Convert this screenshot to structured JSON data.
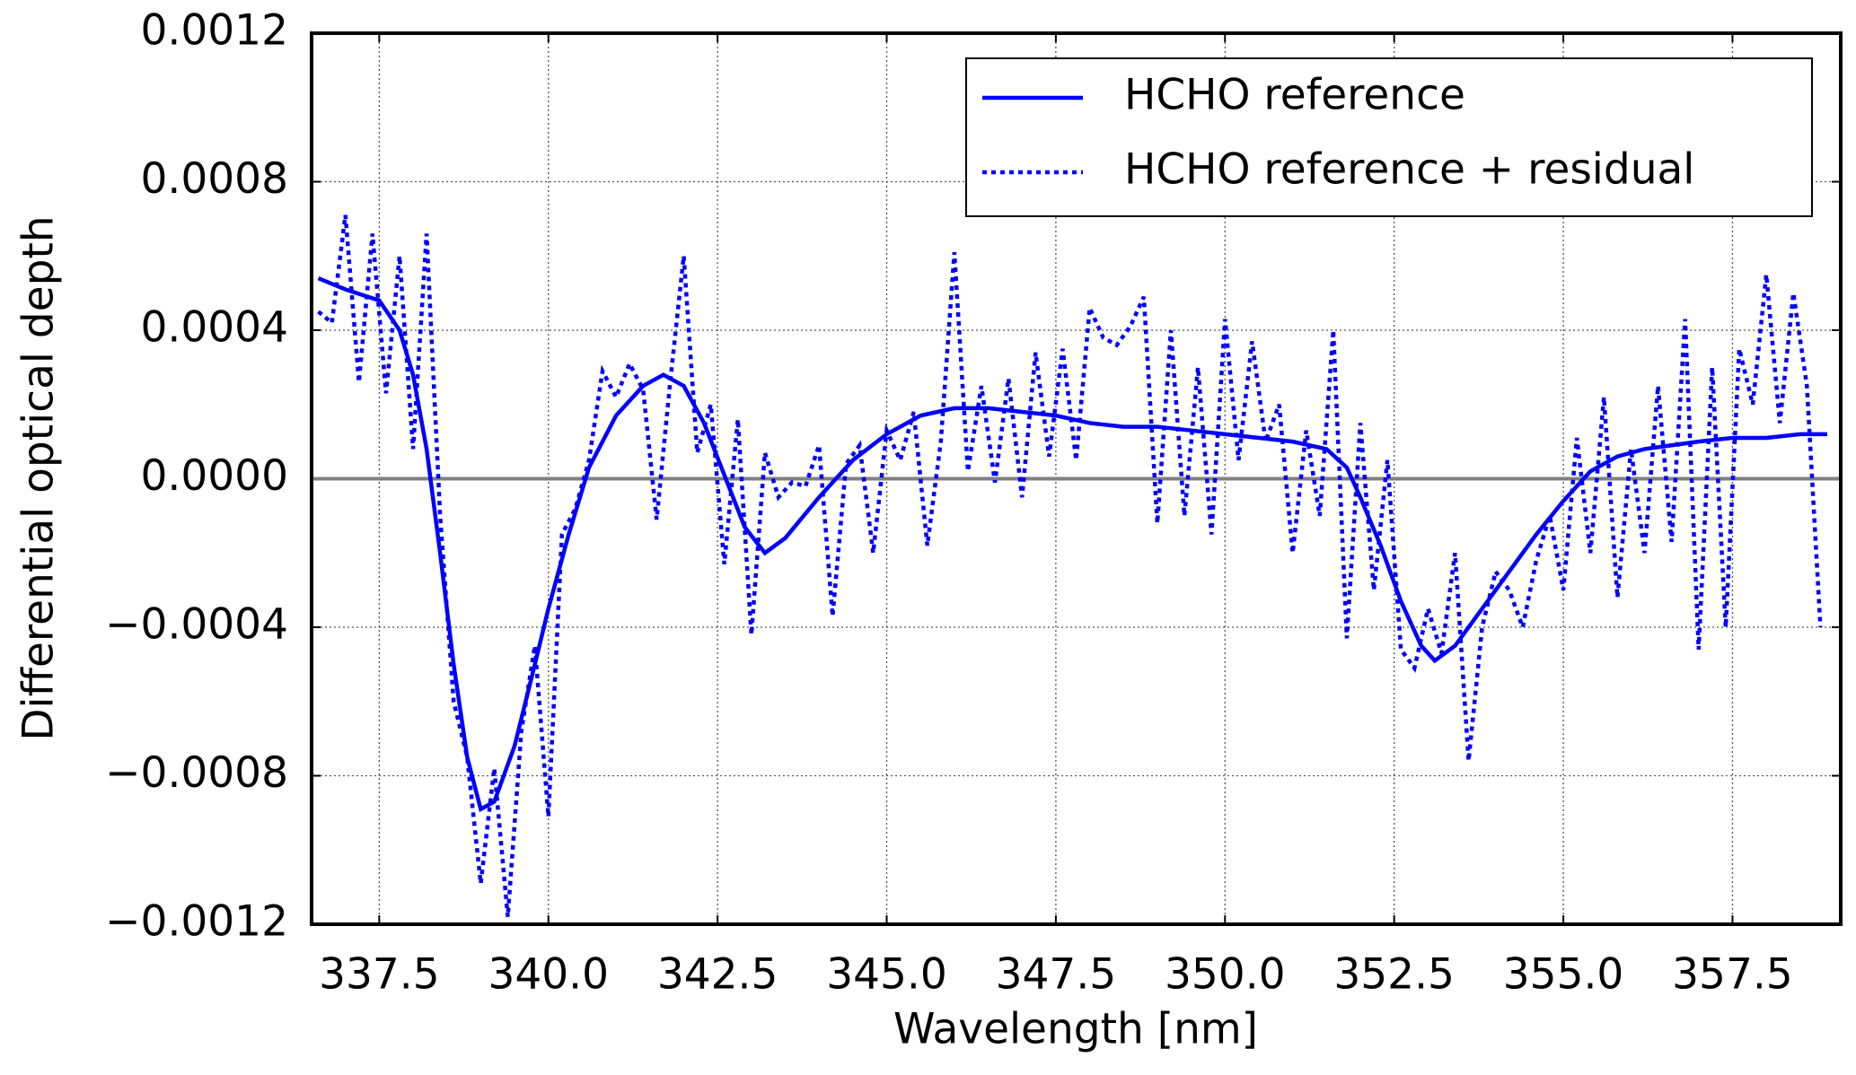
{
  "chart_data": {
    "type": "line",
    "xlabel": "Wavelength [nm]",
    "ylabel": "Differential optical depth",
    "xlim": [
      336.5,
      359.1
    ],
    "ylim": [
      -0.0012,
      0.0012
    ],
    "xticks": [
      337.5,
      {
        "value": 340.0,
        "label": "340.0"
      },
      342.5,
      {
        "value": 345.0,
        "label": "345.0"
      },
      347.5,
      {
        "value": 350.0,
        "label": "350.0"
      },
      352.5,
      {
        "value": 355.0,
        "label": "355.0"
      },
      357.5
    ],
    "yticks": [
      {
        "value": 0.0012,
        "label": "0.0012"
      },
      {
        "value": 0.0008,
        "label": "0.0008"
      },
      {
        "value": 0.0004,
        "label": "0.0004"
      },
      {
        "value": 0,
        "label": "0.0000"
      },
      {
        "value": -0.0004,
        "label": "−0.0004"
      },
      {
        "value": -0.0008,
        "label": "−0.0008"
      },
      {
        "value": -0.0012,
        "label": "−0.0012"
      }
    ],
    "grid": true,
    "legend": "upper right",
    "zero_line": {
      "value": 0,
      "color": "#808080"
    },
    "series": [
      {
        "name": "HCHO reference",
        "color": "#0000ff",
        "style": "solid",
        "x": [
          336.6,
          337.0,
          337.5,
          337.8,
          338.0,
          338.2,
          338.4,
          338.6,
          338.8,
          339.0,
          339.2,
          339.5,
          339.8,
          340.0,
          340.3,
          340.6,
          341.0,
          341.4,
          341.7,
          342.0,
          342.3,
          342.6,
          342.9,
          343.2,
          343.5,
          344.0,
          344.5,
          345.0,
          345.5,
          346.0,
          346.5,
          347.0,
          347.5,
          348.0,
          348.5,
          349.0,
          350.0,
          350.5,
          351.0,
          351.5,
          351.8,
          352.0,
          352.3,
          352.6,
          352.9,
          353.1,
          353.4,
          353.8,
          354.2,
          354.6,
          355.0,
          355.4,
          355.8,
          356.2,
          356.6,
          357.0,
          357.5,
          358.0,
          358.5,
          358.9
        ],
        "values": [
          0.00054,
          0.00051,
          0.00048,
          0.0004,
          0.00028,
          8e-05,
          -0.0002,
          -0.0005,
          -0.00075,
          -0.00089,
          -0.00087,
          -0.00072,
          -0.0005,
          -0.00035,
          -0.00015,
          3e-05,
          0.00017,
          0.00025,
          0.00028,
          0.00025,
          0.00015,
          1e-05,
          -0.00013,
          -0.0002,
          -0.00016,
          -5e-05,
          5e-05,
          0.00012,
          0.00017,
          0.00019,
          0.00019,
          0.00018,
          0.00017,
          0.00015,
          0.00014,
          0.00014,
          0.00012,
          0.00011,
          0.0001,
          8e-05,
          3e-05,
          -5e-05,
          -0.00018,
          -0.00033,
          -0.00045,
          -0.00049,
          -0.00045,
          -0.00035,
          -0.00025,
          -0.00015,
          -6e-05,
          2e-05,
          6e-05,
          8e-05,
          9e-05,
          0.0001,
          0.00011,
          0.00011,
          0.00012,
          0.00012
        ]
      },
      {
        "name": "HCHO reference + residual",
        "color": "#0000ff",
        "style": "dotted",
        "x": [
          336.6,
          336.8,
          337.0,
          337.2,
          337.4,
          337.6,
          337.8,
          338.0,
          338.2,
          338.4,
          338.6,
          338.8,
          339.0,
          339.2,
          339.4,
          339.6,
          339.8,
          340.0,
          340.2,
          340.4,
          340.6,
          340.8,
          341.0,
          341.2,
          341.4,
          341.6,
          341.8,
          342.0,
          342.2,
          342.4,
          342.6,
          342.8,
          343.0,
          343.2,
          343.4,
          343.6,
          343.8,
          344.0,
          344.2,
          344.4,
          344.6,
          344.8,
          345.0,
          345.2,
          345.4,
          345.6,
          345.8,
          346.0,
          346.2,
          346.4,
          346.6,
          346.8,
          347.0,
          347.2,
          347.4,
          347.6,
          347.8,
          348.0,
          348.2,
          348.4,
          348.6,
          348.8,
          349.0,
          349.2,
          349.4,
          349.6,
          349.8,
          350.0,
          350.2,
          350.4,
          350.6,
          350.8,
          351.0,
          351.2,
          351.4,
          351.6,
          351.8,
          352.0,
          352.2,
          352.4,
          352.6,
          352.8,
          353.0,
          353.2,
          353.4,
          353.6,
          353.8,
          354.0,
          354.2,
          354.4,
          354.6,
          354.8,
          355.0,
          355.2,
          355.4,
          355.6,
          355.8,
          356.0,
          356.2,
          356.4,
          356.6,
          356.8,
          357.0,
          357.2,
          357.4,
          357.6,
          357.8,
          358.0,
          358.2,
          358.4,
          358.6,
          358.8
        ],
        "values": [
          0.00045,
          0.00042,
          0.00071,
          0.00026,
          0.00066,
          0.00023,
          0.0006,
          8e-05,
          0.00066,
          -0.0001,
          -0.0006,
          -0.00075,
          -0.00109,
          -0.00078,
          -0.00118,
          -0.00068,
          -0.00045,
          -0.00091,
          -0.00015,
          -8e-05,
          5e-05,
          0.00029,
          0.00022,
          0.00031,
          0.00024,
          -0.00011,
          0.00026,
          0.0006,
          7e-05,
          0.0002,
          -0.00023,
          0.00016,
          -0.00042,
          7e-05,
          -5e-05,
          -1e-05,
          -2e-05,
          9e-05,
          -0.00037,
          4e-05,
          9e-05,
          -0.0002,
          0.00013,
          5e-05,
          0.00018,
          -0.00018,
          0.0001,
          0.00061,
          2e-05,
          0.00025,
          -1e-05,
          0.00027,
          -5e-05,
          0.00034,
          6e-05,
          0.00035,
          5e-05,
          0.00046,
          0.00038,
          0.00036,
          0.00041,
          0.00049,
          -0.00012,
          0.0004,
          -0.0001,
          0.0003,
          -0.00015,
          0.00043,
          5e-05,
          0.00037,
          0.0001,
          0.0002,
          -0.0002,
          0.00013,
          -0.0001,
          0.0004,
          -0.00043,
          0.00015,
          -0.0003,
          5e-05,
          -0.00046,
          -0.00051,
          -0.00035,
          -0.00047,
          -0.0002,
          -0.00076,
          -0.0004,
          -0.00025,
          -0.0003,
          -0.0004,
          -0.00022,
          -0.0001,
          -0.0003,
          0.00011,
          -0.0002,
          0.00022,
          -0.00032,
          8e-05,
          -0.0002,
          0.00025,
          -0.00017,
          0.00043,
          -0.00046,
          0.0003,
          -0.0004,
          0.00035,
          0.0002,
          0.00055,
          0.00015,
          0.0005,
          0.00025,
          -0.0004
        ]
      }
    ]
  }
}
